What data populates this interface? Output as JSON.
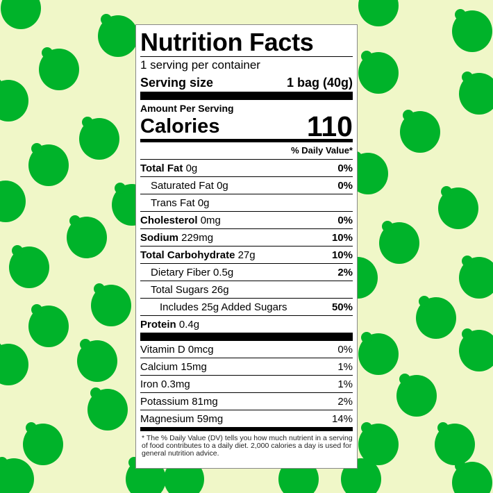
{
  "colors": {
    "background": "#f0f7c8",
    "lime": "#00b32a",
    "label_bg": "#ffffff",
    "text": "#000000"
  },
  "background_pattern": {
    "icon": "lime-icon"
  },
  "label": {
    "title": "Nutrition Facts",
    "servings": "1 serving per container",
    "serving_size_label": "Serving size",
    "serving_size_value": "1 bag (40g)",
    "amount_per_serving": "Amount Per Serving",
    "calories_label": "Calories",
    "calories_value": "110",
    "daily_value_header": "% Daily Value*",
    "nutrients": [
      {
        "name": "Total Fat",
        "amount": "0g",
        "dv": "0%",
        "bold": true,
        "indent": 0
      },
      {
        "name": "Saturated Fat",
        "amount": "0g",
        "dv": "0%",
        "bold": false,
        "indent": 1
      },
      {
        "name": "Trans Fat",
        "amount": "0g",
        "dv": "",
        "bold": false,
        "indent": 1
      },
      {
        "name": "Cholesterol",
        "amount": "0mg",
        "dv": "0%",
        "bold": true,
        "indent": 0
      },
      {
        "name": "Sodium",
        "amount": "229mg",
        "dv": "10%",
        "bold": true,
        "indent": 0
      },
      {
        "name": "Total Carbohydrate",
        "amount": "27g",
        "dv": "10%",
        "bold": true,
        "indent": 0
      },
      {
        "name": "Dietary Fiber",
        "amount": "0.5g",
        "dv": "2%",
        "bold": false,
        "indent": 1
      },
      {
        "name": "Total Sugars",
        "amount": "26g",
        "dv": "",
        "bold": false,
        "indent": 1
      },
      {
        "name": "Includes 25g Added Sugars",
        "amount": "",
        "dv": "50%",
        "bold": false,
        "indent": 2
      },
      {
        "name": "Protein",
        "amount": "0.4g",
        "dv": "",
        "bold": true,
        "indent": 0
      }
    ],
    "vitamins": [
      {
        "name": "Vitamin D 0mcg",
        "dv": "0%"
      },
      {
        "name": "Calcium 15mg",
        "dv": "1%"
      },
      {
        "name": "Iron 0.3mg",
        "dv": "1%"
      },
      {
        "name": "Potassium 81mg",
        "dv": "2%"
      },
      {
        "name": "Magnesium 59mg",
        "dv": "14%"
      }
    ],
    "footnote": "* The % Daily Value (DV) tells you how much nutrient in a serving of food contributes to a daily diet. 2,000 calories a day is used for general nutrition advice."
  }
}
